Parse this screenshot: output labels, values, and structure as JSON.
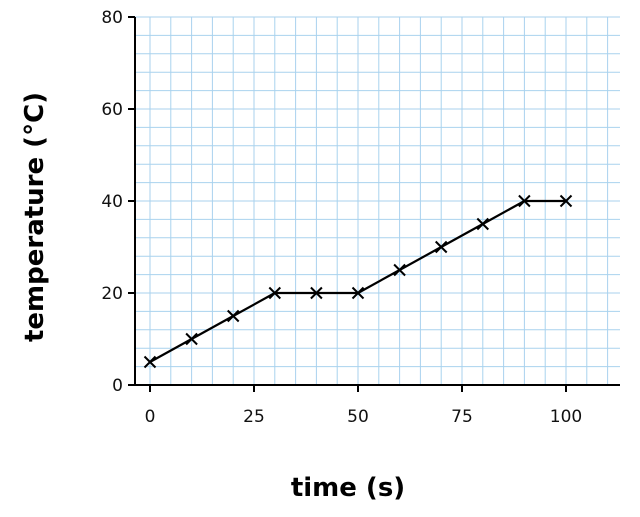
{
  "chart_data": {
    "type": "line",
    "title": "",
    "xlabel": "time (s)",
    "ylabel": "temperature (°C)",
    "xlim": [
      0,
      112
    ],
    "ylim": [
      0,
      80
    ],
    "x_ticks": [
      0,
      25,
      50,
      75,
      100
    ],
    "y_ticks": [
      0,
      20,
      40,
      60,
      80
    ],
    "x_minor_step": 5,
    "y_minor_step": 4,
    "grid": true,
    "marker": "cross",
    "colors": {
      "line": "#000000",
      "grid": "#a9d2ee",
      "axis": "#000000"
    },
    "series": [
      {
        "x": [
          0,
          10,
          20,
          30,
          40,
          50,
          60,
          70,
          80,
          90,
          100
        ],
        "y": [
          5,
          10,
          15,
          20,
          20,
          20,
          25,
          30,
          35,
          40,
          40
        ]
      }
    ]
  }
}
